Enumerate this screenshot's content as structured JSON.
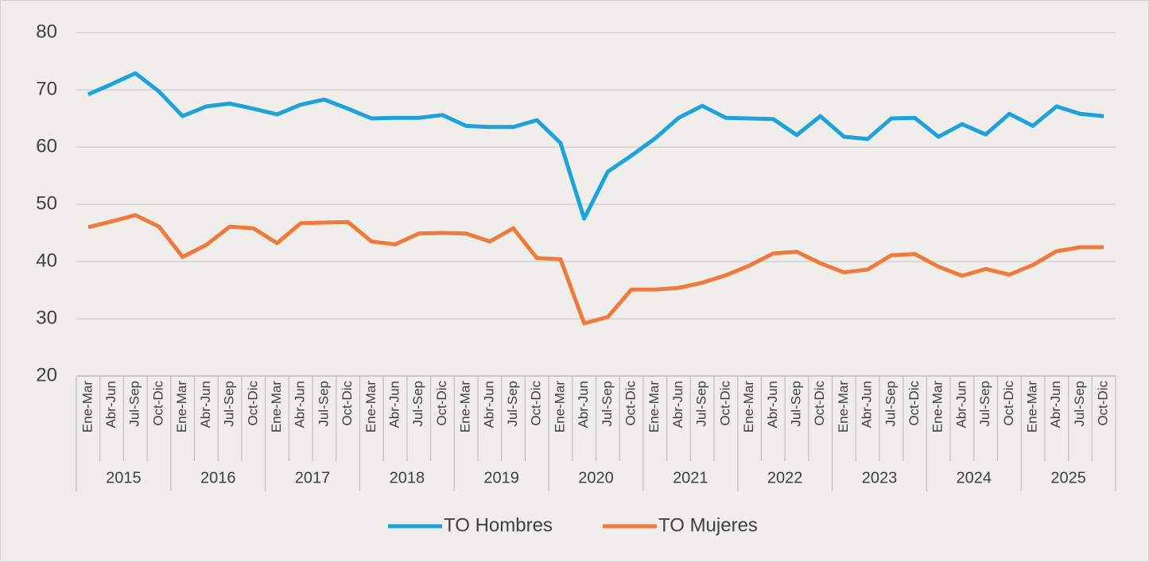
{
  "chart_data": {
    "type": "line",
    "categories": [
      "Ene-Mar",
      "Abr-Jun",
      "Jul-Sep",
      "Oct-Dic",
      "Ene-Mar",
      "Abr-Jun",
      "Jul-Sep",
      "Oct-Dic",
      "Ene-Mar",
      "Abr-Jun",
      "Jul-Sep",
      "Oct-Dic",
      "Ene-Mar",
      "Abr-Jun",
      "Jul-Sep",
      "Oct-Dic",
      "Ene-Mar",
      "Abr-Jun",
      "Jul-Sep",
      "Oct-Dic",
      "Ene-Mar",
      "Abr-Jun",
      "Jul-Sep",
      "Oct-Dic",
      "Ene-Mar",
      "Abr-Jun",
      "Jul-Sep",
      "Oct-Dic",
      "Ene-Mar",
      "Abr-Jun",
      "Jul-Sep",
      "Oct-Dic",
      "Ene-Mar",
      "Abr-Jun",
      "Jul-Sep",
      "Oct-Dic",
      "Ene-Mar",
      "Abr-Jun",
      "Jul-Sep",
      "Oct-Dic",
      "Ene-Mar",
      "Abr-Jun",
      "Jul-Sep",
      "Oct-Dic"
    ],
    "category_groups": [
      "2015",
      "2016",
      "2017",
      "2018",
      "2019",
      "2020",
      "2021",
      "2022",
      "2023",
      "2024",
      "2025"
    ],
    "series": [
      {
        "name": "TO Hombres",
        "color": "#1ea2dc",
        "values": [
          69.2,
          71.0,
          72.9,
          69.7,
          65.4,
          67.1,
          67.6,
          66.7,
          65.7,
          67.4,
          68.3,
          66.7,
          65.0,
          65.1,
          65.1,
          65.6,
          63.7,
          63.5,
          63.5,
          64.7,
          60.7,
          47.5,
          55.7,
          58.5,
          61.5,
          65.1,
          67.2,
          65.1,
          65.0,
          64.9,
          62.1,
          65.4,
          61.8,
          61.4,
          65.0,
          65.1,
          61.8,
          64.0,
          62.2,
          65.8,
          63.7,
          67.1,
          65.8,
          65.4
        ]
      },
      {
        "name": "TO Mujeres",
        "color": "#ee7b3d",
        "values": [
          46.0,
          47.0,
          48.1,
          46.1,
          40.8,
          42.9,
          46.1,
          45.8,
          43.2,
          46.7,
          46.8,
          46.9,
          43.5,
          43.0,
          44.9,
          45.0,
          44.9,
          43.5,
          45.8,
          40.6,
          40.4,
          29.2,
          30.3,
          35.1,
          35.1,
          35.4,
          36.3,
          37.6,
          39.3,
          41.4,
          41.7,
          39.7,
          38.1,
          38.6,
          41.1,
          41.3,
          39.1,
          37.5,
          38.7,
          37.7,
          39.4,
          41.8,
          42.5,
          42.5
        ]
      }
    ],
    "ylim": [
      20,
      80
    ],
    "yticks": [
      20,
      30,
      40,
      50,
      60,
      70,
      80
    ],
    "grid": true,
    "legend": "bottom"
  }
}
